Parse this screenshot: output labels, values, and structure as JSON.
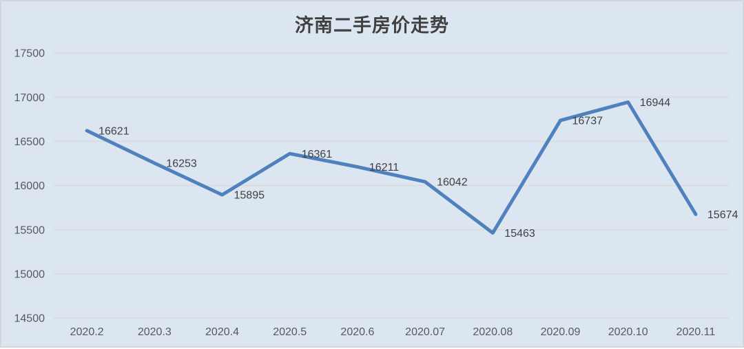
{
  "window": {
    "background": "#dce6f1",
    "border_color": "#d2d6da"
  },
  "chart_data": {
    "type": "line",
    "title": "济南二手房价走势",
    "categories": [
      "2020.2",
      "2020.3",
      "2020.4",
      "2020.5",
      "2020.6",
      "2020.07",
      "2020.08",
      "2020.09",
      "2020.10",
      "2020.11"
    ],
    "values": [
      16621,
      16253,
      15895,
      16361,
      16211,
      16042,
      15463,
      16737,
      16944,
      15674
    ],
    "data_labels_shown": true,
    "xlabel": "",
    "ylabel": "",
    "ylim": [
      14500,
      17500
    ],
    "yticks": [
      14500,
      15000,
      15500,
      16000,
      16500,
      17000,
      17500
    ],
    "grid": true,
    "legend": "none",
    "colors": {
      "line": "#4f81bd",
      "background": "#dce6f1",
      "gridline": "#d9d9d9",
      "title_text": "#404040",
      "axis_text": "#595959",
      "data_label_text": "#404040"
    }
  }
}
